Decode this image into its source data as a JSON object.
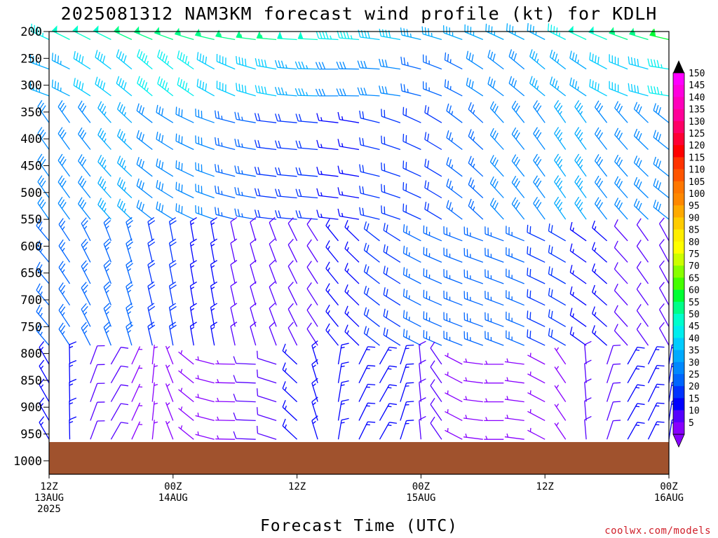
{
  "chart_data": {
    "type": "wind-barb time-height cross section",
    "title": "2025081312 NAM3KM forecast wind profile (kt) for KDLH",
    "xlabel": "Forecast Time (UTC)",
    "credit": "coolwx.com/models",
    "pressure_levels": [
      200,
      250,
      300,
      350,
      400,
      450,
      500,
      550,
      600,
      650,
      700,
      750,
      800,
      850,
      900,
      950,
      1000
    ],
    "ylim": [
      200,
      1025
    ],
    "surface_pressure": 965,
    "surface_color": "#a0522d",
    "xlim_hours": [
      0,
      60
    ],
    "xticks": [
      {
        "hour": 0,
        "lines": [
          "12Z",
          "13AUG",
          "2025"
        ]
      },
      {
        "hour": 12,
        "lines": [
          "00Z",
          "14AUG"
        ]
      },
      {
        "hour": 24,
        "lines": [
          "12Z"
        ]
      },
      {
        "hour": 36,
        "lines": [
          "00Z",
          "15AUG"
        ]
      },
      {
        "hour": 48,
        "lines": [
          "12Z"
        ]
      },
      {
        "hour": 60,
        "lines": [
          "00Z",
          "16AUG"
        ]
      }
    ],
    "barb_times_hours": [
      0,
      2,
      4,
      6,
      8,
      10,
      12,
      14,
      16,
      18,
      20,
      22,
      24,
      26,
      28,
      30,
      32,
      34,
      36,
      38,
      40,
      42,
      44,
      46,
      48,
      50,
      52,
      54,
      56,
      58,
      60
    ],
    "barb_levels": [
      215,
      270,
      320,
      370,
      420,
      470,
      510,
      550,
      590,
      630,
      670,
      710,
      750,
      785,
      820,
      855,
      890,
      925,
      960,
      990
    ],
    "wind_profile_summary": "Upper levels (200-350 hPa) westerly to northwesterly 35-65 kt, strongest 55-65 kt near 200 hPa late in the period; mid levels 15-40 kt; low levels near the surface 5-25 kt, light and variable.",
    "colorbar": {
      "ticks": [
        150,
        145,
        140,
        135,
        130,
        125,
        120,
        115,
        110,
        105,
        100,
        95,
        90,
        85,
        80,
        75,
        70,
        65,
        60,
        55,
        50,
        45,
        40,
        35,
        30,
        25,
        20,
        15,
        10,
        5
      ],
      "colors": [
        "#ff00ff",
        "#ff00dd",
        "#ff00bb",
        "#ff0099",
        "#ff0066",
        "#ff0033",
        "#ff0000",
        "#ff3300",
        "#ff5500",
        "#ff7700",
        "#ff8800",
        "#ffaa00",
        "#ffcc00",
        "#ffee00",
        "#ffff00",
        "#ccff00",
        "#88ff00",
        "#44ff00",
        "#00ff33",
        "#00ff88",
        "#00ffcc",
        "#00eeee",
        "#00ccff",
        "#00aaff",
        "#0088ff",
        "#0066ff",
        "#0033ff",
        "#0000ff",
        "#5500ff",
        "#8800ff"
      ],
      "top_arrow_color": "#000000",
      "bottom_arrow_color": "#8800ff"
    }
  }
}
